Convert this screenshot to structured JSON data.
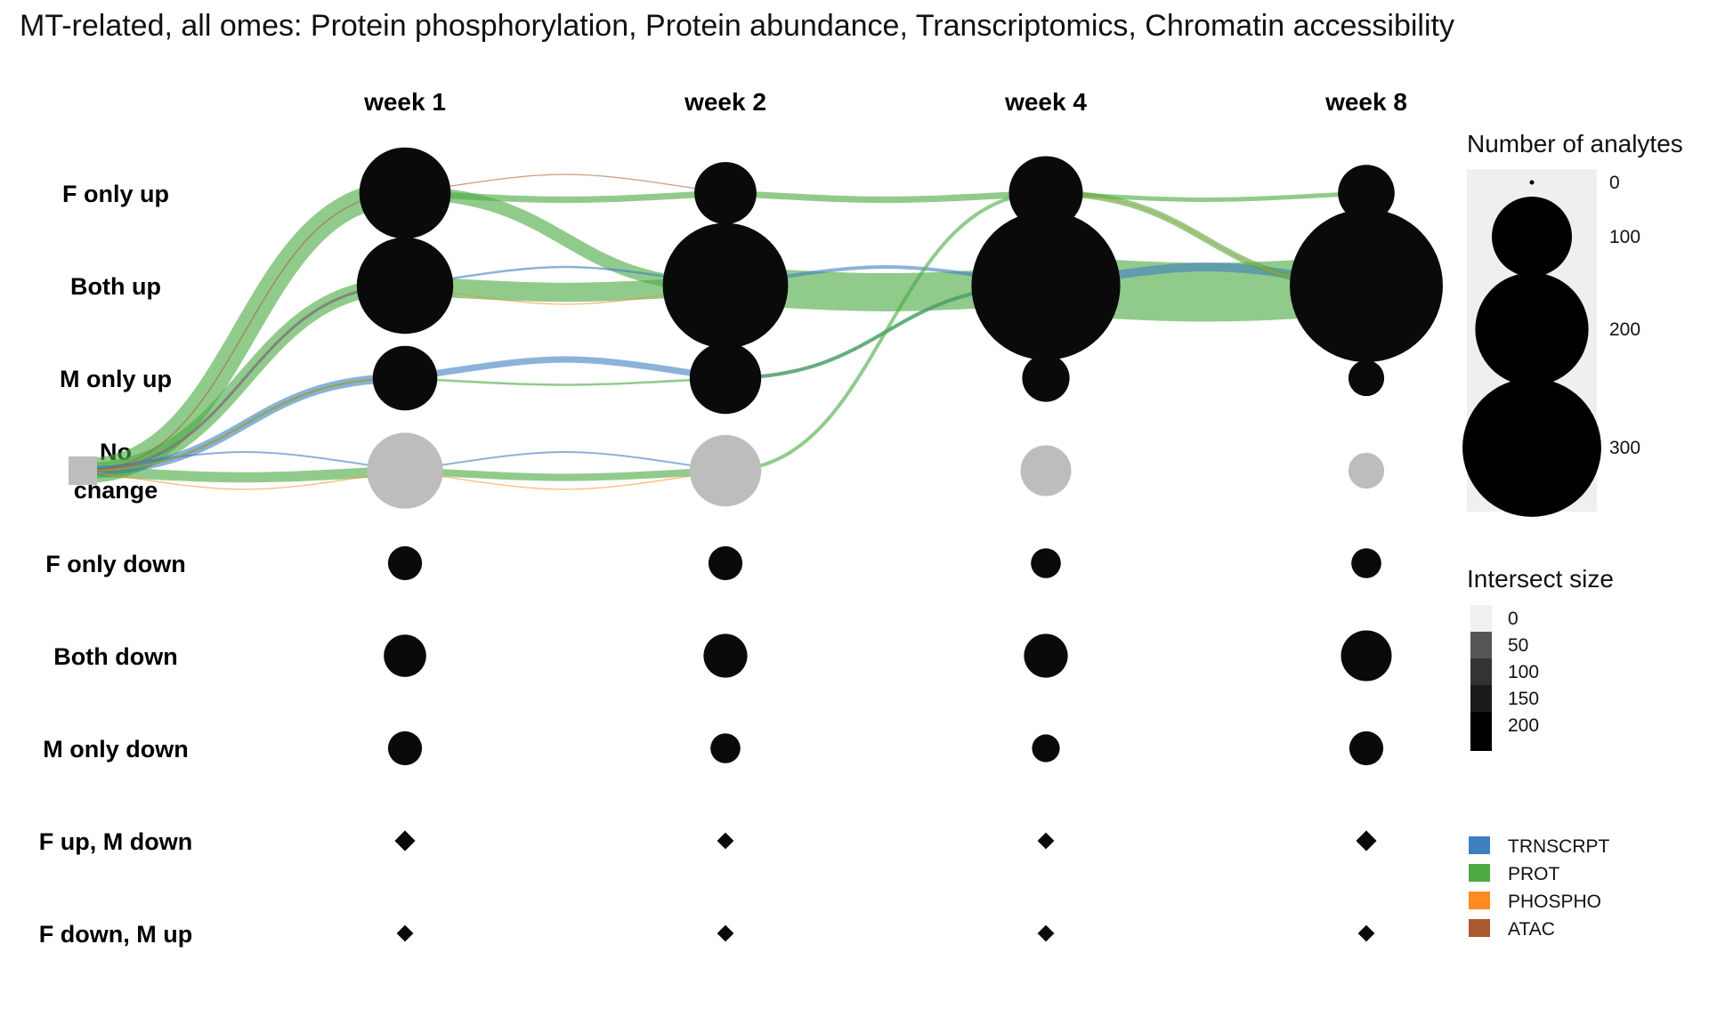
{
  "chart_data": {
    "type": "alluvial-bubble",
    "title": "MT-related, all omes: Protein phosphorylation, Protein abundance, Transcriptomics, Chromatin accessibility",
    "start_state": [
      "No",
      "change"
    ],
    "timepoints": [
      "week 1",
      "week 2",
      "week 4",
      "week 8"
    ],
    "states": [
      "F only up",
      "Both up",
      "M only up",
      "No change",
      "F only down",
      "Both down",
      "M only down",
      "F up, M down",
      "F down, M up"
    ],
    "node_colors": {
      "change": "#0a0a0a",
      "no_change": "#bdbdbd"
    },
    "node_shapes": {
      "F up, M down": "diamond",
      "F down, M up": "diamond"
    },
    "nodes": [
      {
        "state": "F only up",
        "values": [
          130,
          60,
          85,
          50
        ]
      },
      {
        "state": "Both up",
        "values": [
          145,
          245,
          345,
          365
        ]
      },
      {
        "state": "M only up",
        "values": [
          65,
          80,
          35,
          20
        ]
      },
      {
        "state": "No change",
        "values": [
          90,
          80,
          40,
          20
        ]
      },
      {
        "state": "F only down",
        "values": [
          18,
          18,
          14,
          14
        ]
      },
      {
        "state": "Both down",
        "values": [
          28,
          30,
          30,
          40
        ]
      },
      {
        "state": "M only down",
        "values": [
          18,
          14,
          12,
          18
        ]
      },
      {
        "state": "F up, M down",
        "values": [
          3,
          2,
          2,
          3
        ]
      },
      {
        "state": "F down, M up",
        "values": [
          2,
          2,
          2,
          2
        ]
      }
    ],
    "flows": [
      {
        "ome": "PROT",
        "from": [
          -1,
          "No change"
        ],
        "to": [
          0,
          "F only up"
        ],
        "size": 85
      },
      {
        "ome": "ATAC",
        "from": [
          -1,
          "No change"
        ],
        "to": [
          0,
          "F only up"
        ],
        "size": 4
      },
      {
        "ome": "PROT",
        "from": [
          -1,
          "No change"
        ],
        "to": [
          0,
          "Both up"
        ],
        "size": 55
      },
      {
        "ome": "TRNSCRPT",
        "from": [
          -1,
          "No change"
        ],
        "to": [
          0,
          "Both up"
        ],
        "size": 10
      },
      {
        "ome": "PHOSPHO",
        "from": [
          -1,
          "No change"
        ],
        "to": [
          0,
          "Both up"
        ],
        "size": 3
      },
      {
        "ome": "ATAC",
        "from": [
          -1,
          "No change"
        ],
        "to": [
          0,
          "Both up"
        ],
        "size": 3
      },
      {
        "ome": "TRNSCRPT",
        "from": [
          -1,
          "No change"
        ],
        "to": [
          0,
          "M only up"
        ],
        "size": 30
      },
      {
        "ome": "PROT",
        "from": [
          -1,
          "No change"
        ],
        "to": [
          0,
          "M only up"
        ],
        "size": 8
      },
      {
        "ome": "PHOSPHO",
        "from": [
          -1,
          "No change"
        ],
        "to": [
          0,
          "M only up"
        ],
        "size": 2
      },
      {
        "ome": "PROT",
        "from": [
          -1,
          "No change"
        ],
        "to": [
          0,
          "No change"
        ],
        "size": 35
      },
      {
        "ome": "TRNSCRPT",
        "from": [
          -1,
          "No change"
        ],
        "to": [
          0,
          "No change"
        ],
        "size": 6
      },
      {
        "ome": "PHOSPHO",
        "from": [
          -1,
          "No change"
        ],
        "to": [
          0,
          "No change"
        ],
        "size": 4
      },
      {
        "ome": "PROT",
        "from": [
          0,
          "F only up"
        ],
        "to": [
          1,
          "F only up"
        ],
        "size": 22
      },
      {
        "ome": "ATAC",
        "from": [
          0,
          "F only up"
        ],
        "to": [
          1,
          "F only up"
        ],
        "size": 3
      },
      {
        "ome": "PROT",
        "from": [
          0,
          "F only up"
        ],
        "to": [
          1,
          "Both up"
        ],
        "size": 45
      },
      {
        "ome": "PROT",
        "from": [
          0,
          "Both up"
        ],
        "to": [
          1,
          "Both up"
        ],
        "size": 65
      },
      {
        "ome": "TRNSCRPT",
        "from": [
          0,
          "Both up"
        ],
        "to": [
          1,
          "Both up"
        ],
        "size": 8
      },
      {
        "ome": "PHOSPHO",
        "from": [
          0,
          "Both up"
        ],
        "to": [
          1,
          "Both up"
        ],
        "size": 3
      },
      {
        "ome": "TRNSCRPT",
        "from": [
          0,
          "M only up"
        ],
        "to": [
          1,
          "M only up"
        ],
        "size": 22
      },
      {
        "ome": "PROT",
        "from": [
          0,
          "M only up"
        ],
        "to": [
          1,
          "M only up"
        ],
        "size": 8
      },
      {
        "ome": "TRNSCRPT",
        "from": [
          0,
          "No change"
        ],
        "to": [
          1,
          "No change"
        ],
        "size": 6
      },
      {
        "ome": "PROT",
        "from": [
          0,
          "No change"
        ],
        "to": [
          1,
          "No change"
        ],
        "size": 25
      },
      {
        "ome": "PHOSPHO",
        "from": [
          0,
          "No change"
        ],
        "to": [
          1,
          "No change"
        ],
        "size": 4
      },
      {
        "ome": "PROT",
        "from": [
          1,
          "F only up"
        ],
        "to": [
          2,
          "F only up"
        ],
        "size": 22
      },
      {
        "ome": "PROT",
        "from": [
          1,
          "Both up"
        ],
        "to": [
          2,
          "Both up"
        ],
        "size": 130
      },
      {
        "ome": "TRNSCRPT",
        "from": [
          1,
          "Both up"
        ],
        "to": [
          2,
          "Both up"
        ],
        "size": 12
      },
      {
        "ome": "TRNSCRPT",
        "from": [
          1,
          "M only up"
        ],
        "to": [
          2,
          "Both up"
        ],
        "size": 12
      },
      {
        "ome": "PROT",
        "from": [
          1,
          "M only up"
        ],
        "to": [
          2,
          "Both up"
        ],
        "size": 12
      },
      {
        "ome": "PROT",
        "from": [
          1,
          "No change"
        ],
        "to": [
          2,
          "F only up"
        ],
        "size": 12
      },
      {
        "ome": "PROT",
        "from": [
          2,
          "F only up"
        ],
        "to": [
          3,
          "F only up"
        ],
        "size": 15
      },
      {
        "ome": "PROT",
        "from": [
          2,
          "F only up"
        ],
        "to": [
          3,
          "Both up"
        ],
        "size": 22
      },
      {
        "ome": "PHOSPHO",
        "from": [
          2,
          "F only up"
        ],
        "to": [
          3,
          "Both up"
        ],
        "size": 3
      },
      {
        "ome": "PROT",
        "from": [
          2,
          "Both up"
        ],
        "to": [
          3,
          "Both up"
        ],
        "size": 200
      },
      {
        "ome": "TRNSCRPT",
        "from": [
          2,
          "Both up"
        ],
        "to": [
          3,
          "Both up"
        ],
        "size": 30
      }
    ],
    "ome_colors": {
      "TRNSCRPT": "#3d7fbf",
      "PROT": "#4dab45",
      "PHOSPHO": "#ff8a1f",
      "ATAC": "#a8592e"
    },
    "legend_size": {
      "title": "Number of analytes",
      "values": [
        0,
        100,
        200,
        300
      ]
    },
    "legend_intersect": {
      "title": "Intersect size",
      "values": [
        0,
        50,
        100,
        150,
        200
      ]
    },
    "legend_omes": [
      "TRNSCRPT",
      "PROT",
      "PHOSPHO",
      "ATAC"
    ]
  }
}
